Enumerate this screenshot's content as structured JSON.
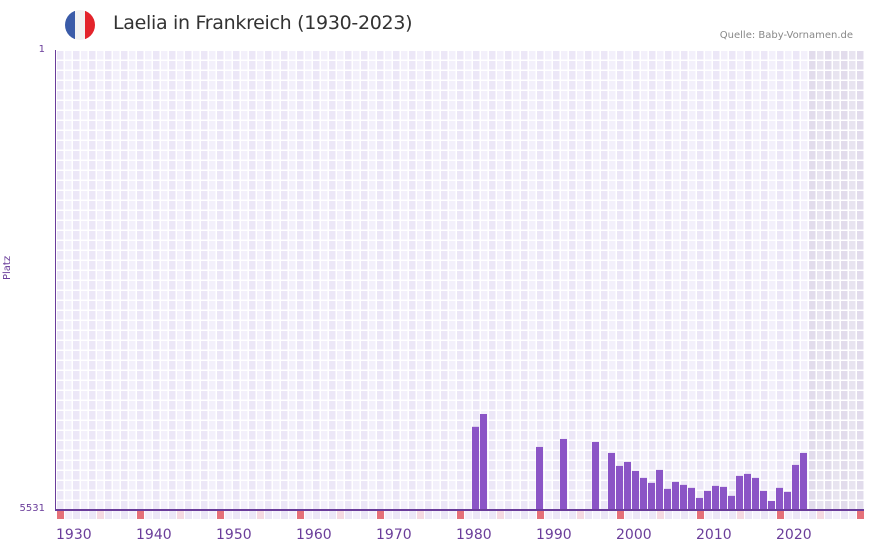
{
  "header": {
    "title": "Laelia in Frankreich (1930-2023)",
    "flag": {
      "country": "France",
      "colors": [
        "#3a5ba8",
        "#f2f2f2",
        "#e3242b"
      ]
    },
    "source": "Quelle: Baby-Vornamen.de"
  },
  "colors": {
    "bar": "#8b55c6",
    "axis": "#6a3d9a",
    "cell_light": "#f3f0fb",
    "cell_dark": "#ece7f7",
    "future_light": "#e8e4f0",
    "future_dark": "#e2dcec",
    "decade_mark": "#e57179",
    "half_decade_mark": "#f5d9e1"
  },
  "chart_data": {
    "type": "bar",
    "title": "Laelia in Frankreich (1930-2023)",
    "xlabel": "",
    "ylabel": "Platz",
    "y_inverted": true,
    "ylim": [
      5531,
      1
    ],
    "y_ticks": [
      "1",
      "5531"
    ],
    "x_range": [
      1930,
      2030
    ],
    "x_tick_labels": [
      "1930",
      "1940",
      "1950",
      "1960",
      "1970",
      "1980",
      "1990",
      "2000",
      "2010",
      "2020"
    ],
    "future_shaded_from": 2024,
    "grid": true,
    "legend": null,
    "categories": [
      1982,
      1983,
      1990,
      1993,
      1997,
      1999,
      2000,
      2001,
      2002,
      2003,
      2004,
      2005,
      2006,
      2007,
      2008,
      2009,
      2010,
      2011,
      2012,
      2013,
      2014,
      2015,
      2016,
      2017,
      2018,
      2019,
      2020,
      2021,
      2022,
      2023
    ],
    "values": [
      4531,
      4377,
      4773,
      4677,
      4713,
      4845,
      5001,
      4953,
      5061,
      5145,
      5205,
      5049,
      5277,
      5193,
      5229,
      5265,
      5386,
      5301,
      5241,
      5253,
      5361,
      5121,
      5097,
      5145,
      5301,
      5422,
      5265,
      5313,
      4989,
      4845
    ]
  },
  "axis": {
    "y_label": "Platz",
    "y_top": "1",
    "y_bottom": "5531",
    "x_labels": [
      "1930",
      "1940",
      "1950",
      "1960",
      "1970",
      "1980",
      "1990",
      "2000",
      "2010",
      "2020"
    ]
  }
}
